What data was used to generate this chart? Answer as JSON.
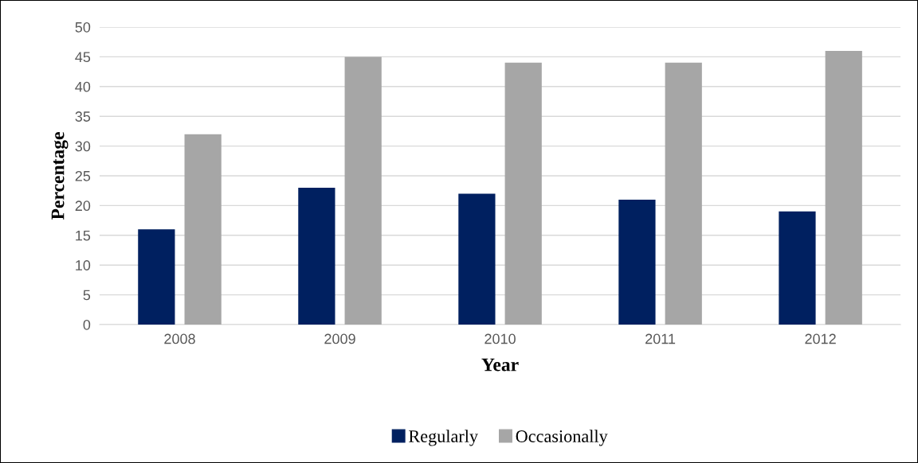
{
  "chart_data": {
    "type": "bar",
    "xlabel": "Year",
    "ylabel": "Percentage",
    "categories": [
      "2008",
      "2009",
      "2010",
      "2011",
      "2012"
    ],
    "series": [
      {
        "name": "Regularly",
        "color": "#002060",
        "values": [
          16,
          23,
          22,
          21,
          19
        ]
      },
      {
        "name": "Occasionally",
        "color": "#a6a6a6",
        "values": [
          32,
          45,
          44,
          44,
          46
        ]
      }
    ],
    "ylim": [
      0,
      50
    ],
    "yticks": [
      0,
      5,
      10,
      15,
      20,
      25,
      30,
      35,
      40,
      45,
      50
    ],
    "grid": "y",
    "legend": "bottom"
  }
}
